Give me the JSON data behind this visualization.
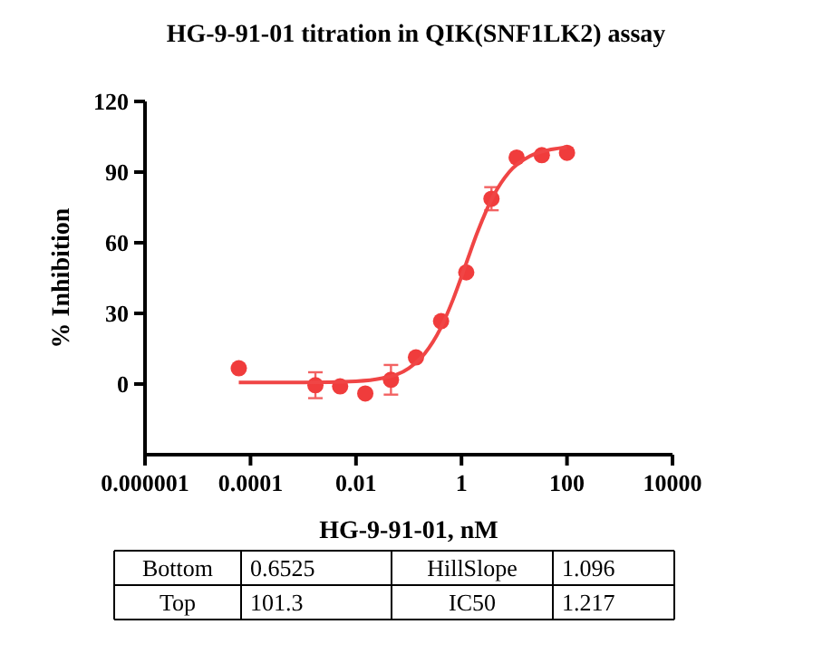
{
  "chart_data": {
    "type": "scatter",
    "title": "HG-9-91-01 titration in QIK(SNF1LK2) assay",
    "xlabel": "HG-9-91-01, nM",
    "ylabel": "% Inhibition",
    "log": "x",
    "xlim": [
      1e-06,
      10000
    ],
    "xticks": [
      {
        "value": 1e-06,
        "label": "0.000001"
      },
      {
        "value": 0.0001,
        "label": "0.0001"
      },
      {
        "value": 0.01,
        "label": "0.01"
      },
      {
        "value": 1,
        "label": "1"
      },
      {
        "value": 100,
        "label": "100"
      },
      {
        "value": 10000,
        "label": "10000"
      }
    ],
    "ylim": [
      -30,
      120
    ],
    "yticks": [
      0,
      30,
      60,
      90,
      120
    ],
    "series": [
      {
        "marker": "circle",
        "color": "#f03c3c",
        "x": [
          6e-05,
          0.0017,
          0.005,
          0.015,
          0.046,
          0.137,
          0.41,
          1.23,
          3.7,
          11.1,
          33.3,
          100
        ],
        "values": [
          6.7,
          -0.5,
          -1,
          -4,
          1.8,
          11.3,
          26.7,
          47.4,
          78.7,
          96.2,
          97.2,
          98.2
        ],
        "errors": [
          null,
          5.5,
          null,
          null,
          6.3,
          null,
          null,
          null,
          4.9,
          null,
          null,
          null
        ]
      },
      {
        "type": "line",
        "marker": "none",
        "color": "#f04545",
        "x": [
          6e-05,
          0.001,
          0.01,
          0.03,
          0.1,
          0.2,
          0.4,
          0.7,
          1.217,
          2,
          4,
          8,
          20,
          50,
          100
        ],
        "values": [
          0.7,
          0.7,
          1.2,
          2.4,
          6.7,
          12.9,
          23.6,
          36.2,
          51,
          64.4,
          79.8,
          90,
          96.8,
          99.6,
          100.5
        ]
      }
    ],
    "annotations": [
      "Bottom",
      "0.6525",
      "HillSlope",
      "1.096",
      "Top",
      "101.3",
      "IC50",
      "1.217"
    ]
  }
}
